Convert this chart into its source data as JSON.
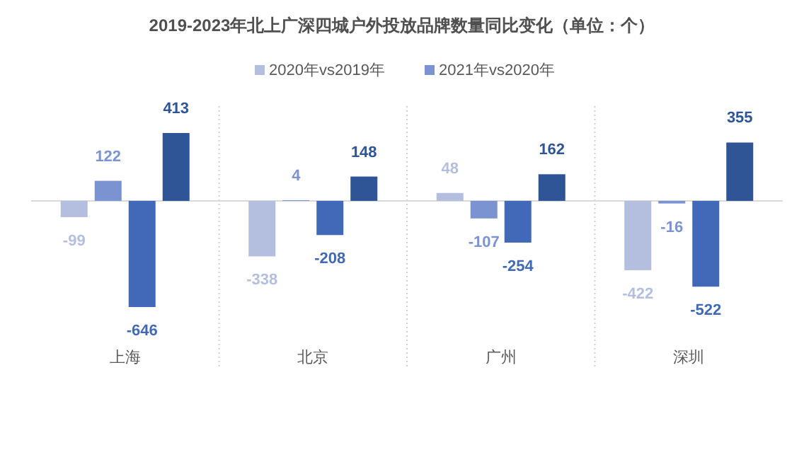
{
  "chart_data": {
    "type": "bar",
    "title": "2019-2023年北上广深四城户外投放品牌数量同比变化（单位：个）",
    "categories": [
      "上海",
      "北京",
      "广州",
      "深圳"
    ],
    "series": [
      {
        "name": "2020年vs2019年",
        "color": "#b4bfe0",
        "values": [
          -99,
          -338,
          48,
          -422
        ]
      },
      {
        "name": "2021年vs2020年",
        "color": "#7b93d0",
        "values": [
          122,
          4,
          -107,
          -16
        ]
      },
      {
        "color": "#4169b8",
        "values": [
          -646,
          -208,
          -254,
          -522
        ]
      },
      {
        "color": "#2f5597",
        "values": [
          413,
          148,
          162,
          355
        ]
      }
    ],
    "data_labels": true,
    "grid": "x",
    "legend": "top"
  }
}
